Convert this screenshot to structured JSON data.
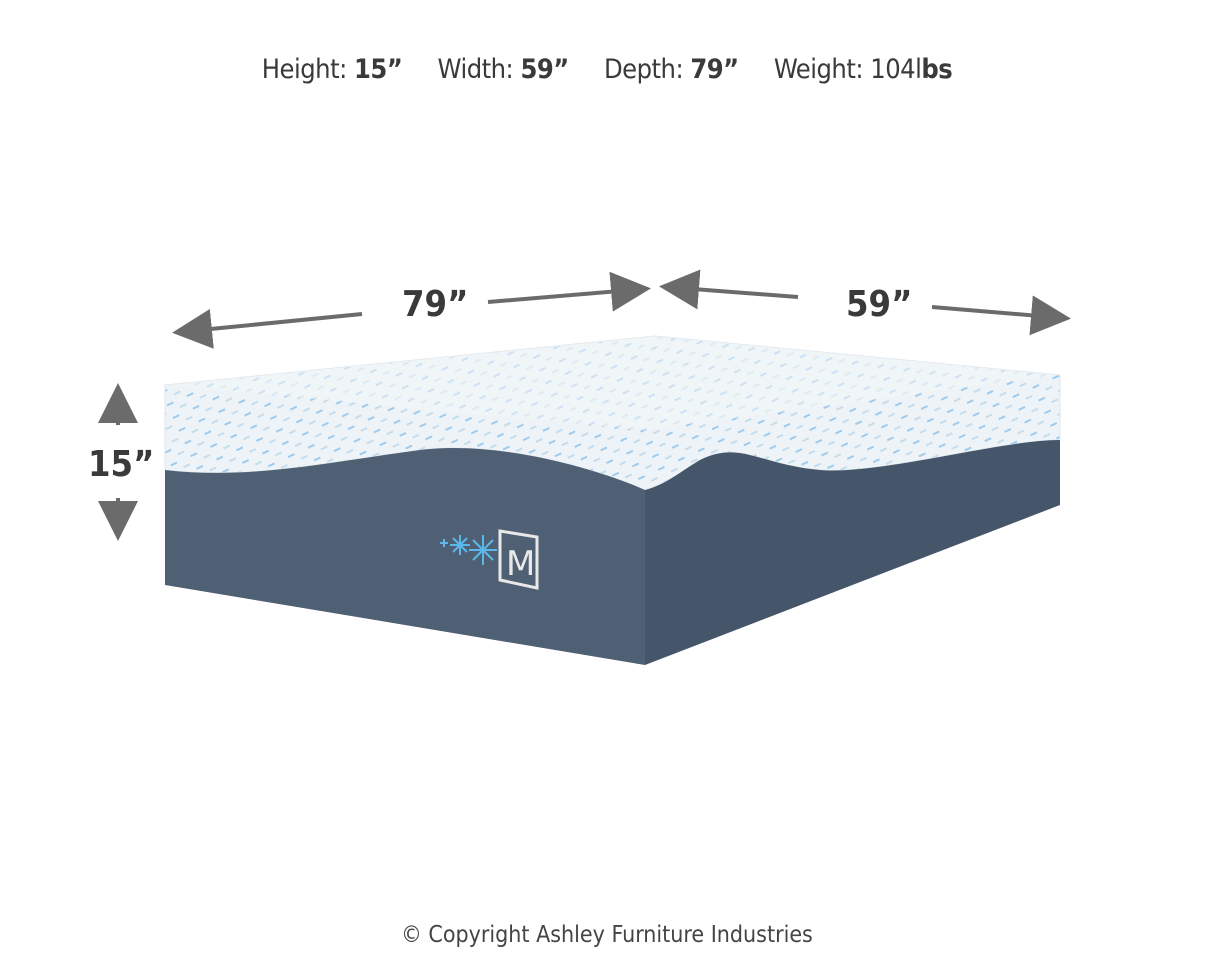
{
  "specs": {
    "height_label": "Height:",
    "height_value": "15”",
    "width_label": "Width:",
    "width_value": "59”",
    "depth_label": "Depth:",
    "depth_value": "79”",
    "weight_label": "Weight:",
    "weight_value": "104l",
    "weight_unit": "bs"
  },
  "dimensions": {
    "length": "79”",
    "width": "59”",
    "height": "15”"
  },
  "logo_text": "M",
  "colors": {
    "cover_top": "#eef3f7",
    "pattern": "#2f8fd8",
    "base": "#4d5d72",
    "arrow": "#6b6b6b",
    "snowflake": "#5bb8ea"
  },
  "copyright": "© Copyright Ashley Furniture Industries"
}
